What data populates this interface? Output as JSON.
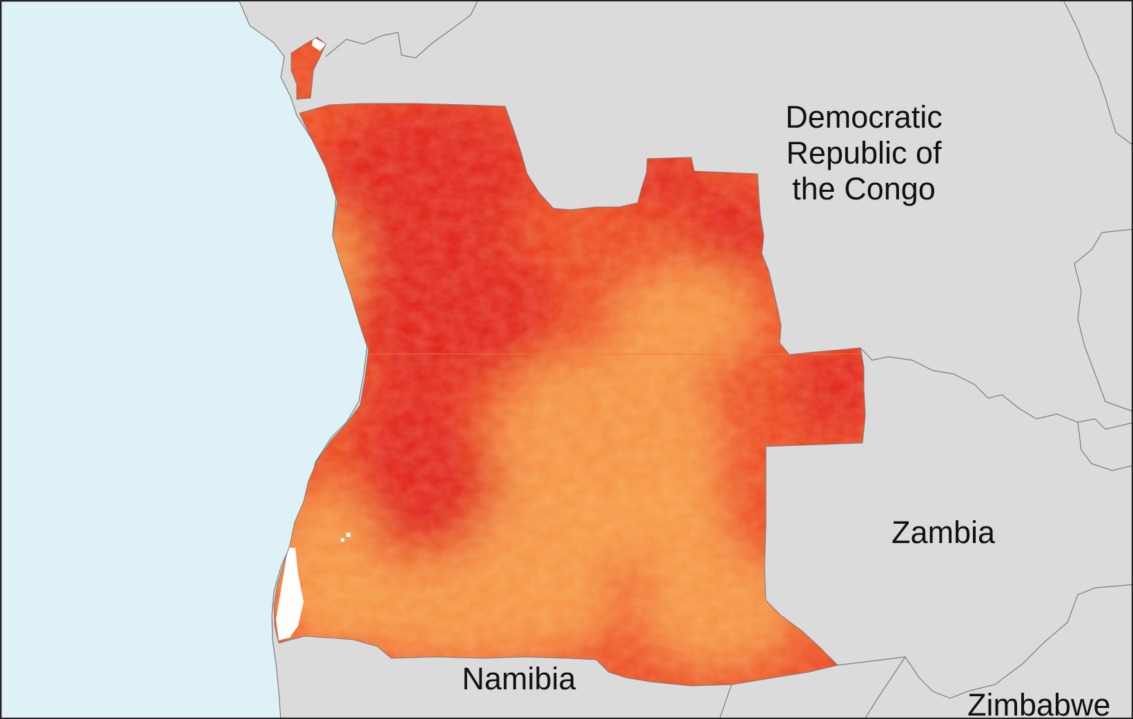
{
  "map": {
    "type": "choropleth-raster",
    "region": "Angola",
    "colors": {
      "ocean": "#def1f7",
      "land": "#dbdbdb",
      "border": "#7a7a7a",
      "high": "#e0201f",
      "mid": "#ec4a23",
      "low": "#f59a48",
      "no_data": "#ffffff",
      "frame": "#222222"
    }
  },
  "labels": {
    "drc": "Democratic\nRepublic of\nthe Congo",
    "zambia": "Zambia",
    "namibia": "Namibia",
    "zimbabwe": "Zimbabwe"
  }
}
